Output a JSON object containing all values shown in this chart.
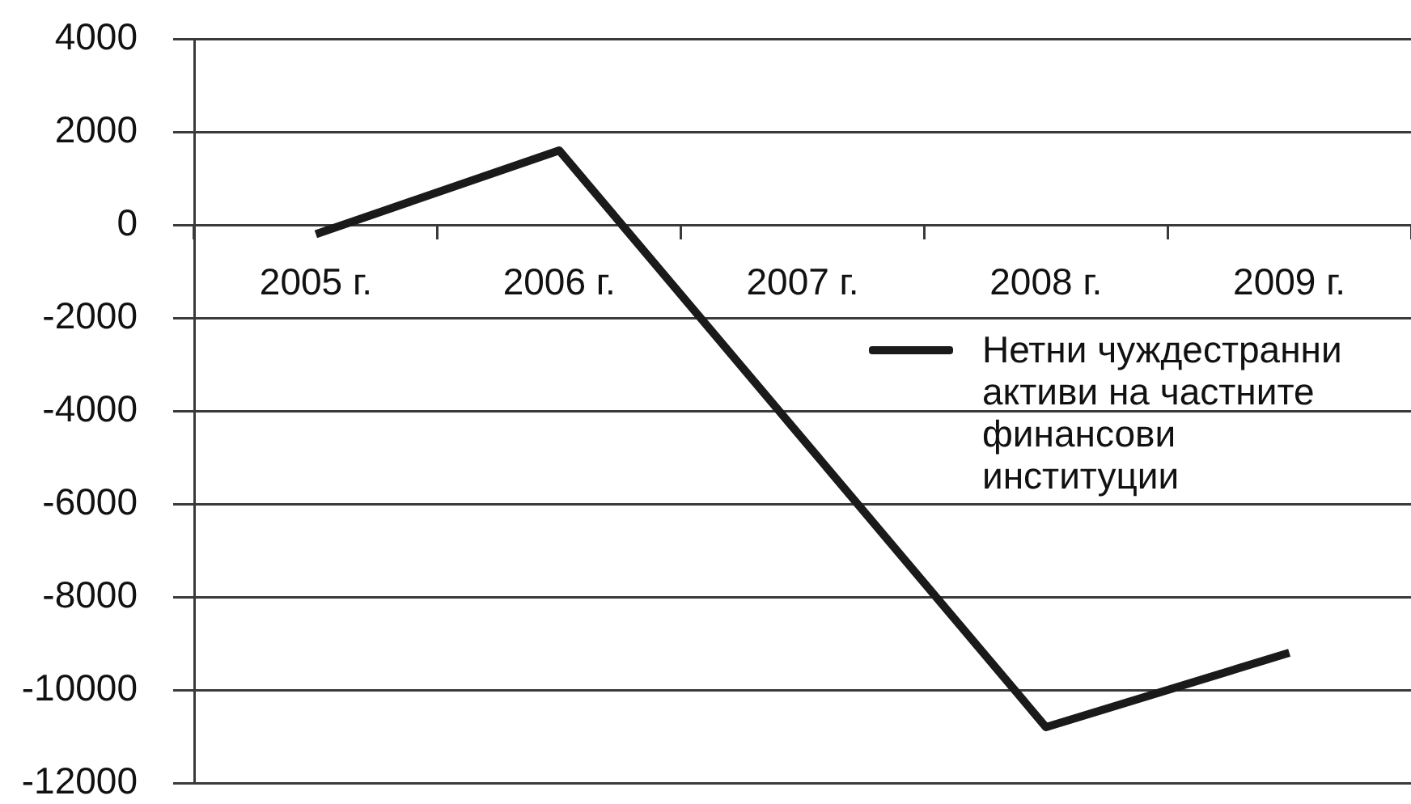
{
  "chart_data": {
    "type": "line",
    "categories": [
      "2005 г.",
      "2006 г.",
      "2007 г.",
      "2008 г.",
      "2009 г."
    ],
    "series": [
      {
        "name": "Нетни чуждестранни активи на частните финансови институции",
        "color": "#1a1a1a",
        "values": [
          -200,
          1600,
          -4600,
          -10800,
          -9200
        ]
      }
    ],
    "ylim": [
      -12000,
      4000
    ],
    "yticks": [
      -12000,
      -10000,
      -8000,
      -6000,
      -4000,
      -2000,
      0,
      2000,
      4000
    ],
    "grid": "y",
    "legend": "right",
    "marker": "none",
    "line_style": "solid"
  }
}
